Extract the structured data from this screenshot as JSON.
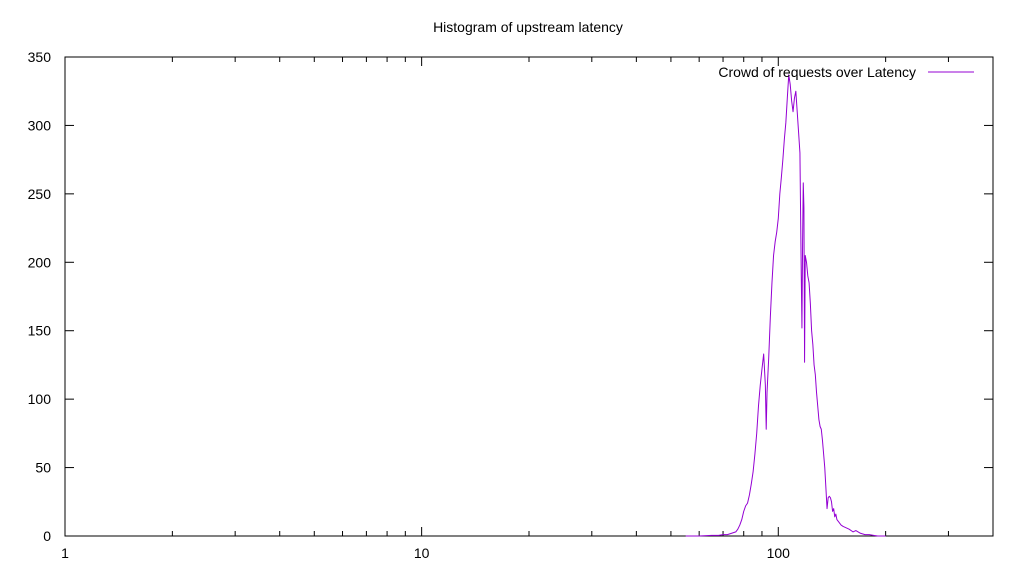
{
  "chart_data": {
    "type": "line",
    "title": "Histogram of upstream latency",
    "xlabel": "",
    "ylabel": "",
    "xscale": "log",
    "xlim": [
      1,
      400
    ],
    "ylim": [
      0,
      350
    ],
    "x_ticks": [
      1,
      10,
      100
    ],
    "x_tick_labels": [
      "1",
      "10",
      "100"
    ],
    "y_ticks": [
      0,
      50,
      100,
      150,
      200,
      250,
      300,
      350
    ],
    "y_tick_labels": [
      "0",
      "50",
      "100",
      "150",
      "200",
      "250",
      "300",
      "350"
    ],
    "grid": false,
    "legend": {
      "position": "top-right"
    },
    "series": [
      {
        "name": "Crowd of requests over Latency",
        "color": "#9400d3",
        "points": [
          [
            55,
            0
          ],
          [
            60,
            0
          ],
          [
            65,
            0.5
          ],
          [
            68,
            0.5
          ],
          [
            70,
            1
          ],
          [
            72,
            1
          ],
          [
            74,
            2
          ],
          [
            76,
            3
          ],
          [
            77,
            5
          ],
          [
            78,
            8
          ],
          [
            79,
            12
          ],
          [
            80,
            18
          ],
          [
            81,
            22
          ],
          [
            82,
            24
          ],
          [
            83,
            30
          ],
          [
            84,
            38
          ],
          [
            85,
            47
          ],
          [
            86,
            60
          ],
          [
            87,
            75
          ],
          [
            88,
            95
          ],
          [
            89,
            110
          ],
          [
            90,
            122
          ],
          [
            91,
            133
          ],
          [
            92,
            110
          ],
          [
            92.5,
            78
          ],
          [
            93,
            105
          ],
          [
            94,
            130
          ],
          [
            95,
            160
          ],
          [
            96,
            185
          ],
          [
            97,
            205
          ],
          [
            98,
            215
          ],
          [
            99,
            222
          ],
          [
            100,
            232
          ],
          [
            101,
            250
          ],
          [
            102,
            262
          ],
          [
            103,
            275
          ],
          [
            104,
            290
          ],
          [
            105,
            302
          ],
          [
            106,
            320
          ],
          [
            107,
            337
          ],
          [
            108,
            330
          ],
          [
            109,
            318
          ],
          [
            110,
            310
          ],
          [
            111,
            320
          ],
          [
            112,
            325
          ],
          [
            113,
            310
          ],
          [
            114,
            295
          ],
          [
            115,
            280
          ],
          [
            116,
            190
          ],
          [
            116.5,
            152
          ],
          [
            117,
            215
          ],
          [
            117.5,
            258
          ],
          [
            118,
            240
          ],
          [
            118.5,
            127
          ],
          [
            119,
            205
          ],
          [
            120,
            200
          ],
          [
            121,
            190
          ],
          [
            122,
            185
          ],
          [
            123,
            170
          ],
          [
            124,
            150
          ],
          [
            125,
            140
          ],
          [
            126,
            125
          ],
          [
            127,
            118
          ],
          [
            128,
            105
          ],
          [
            129,
            95
          ],
          [
            130,
            85
          ],
          [
            131,
            80
          ],
          [
            132,
            78
          ],
          [
            133,
            70
          ],
          [
            134,
            60
          ],
          [
            135,
            50
          ],
          [
            136,
            35
          ],
          [
            137,
            20
          ],
          [
            138,
            28
          ],
          [
            139,
            29
          ],
          [
            140,
            28
          ],
          [
            141,
            25
          ],
          [
            142,
            18
          ],
          [
            143,
            20
          ],
          [
            144,
            14
          ],
          [
            145,
            16
          ],
          [
            146,
            12
          ],
          [
            148,
            10
          ],
          [
            150,
            8
          ],
          [
            152,
            7
          ],
          [
            155,
            6
          ],
          [
            158,
            5
          ],
          [
            162,
            3
          ],
          [
            165,
            4
          ],
          [
            170,
            2
          ],
          [
            175,
            1
          ],
          [
            180,
            1
          ],
          [
            185,
            0.5
          ],
          [
            190,
            0
          ],
          [
            200,
            0
          ]
        ]
      }
    ]
  }
}
